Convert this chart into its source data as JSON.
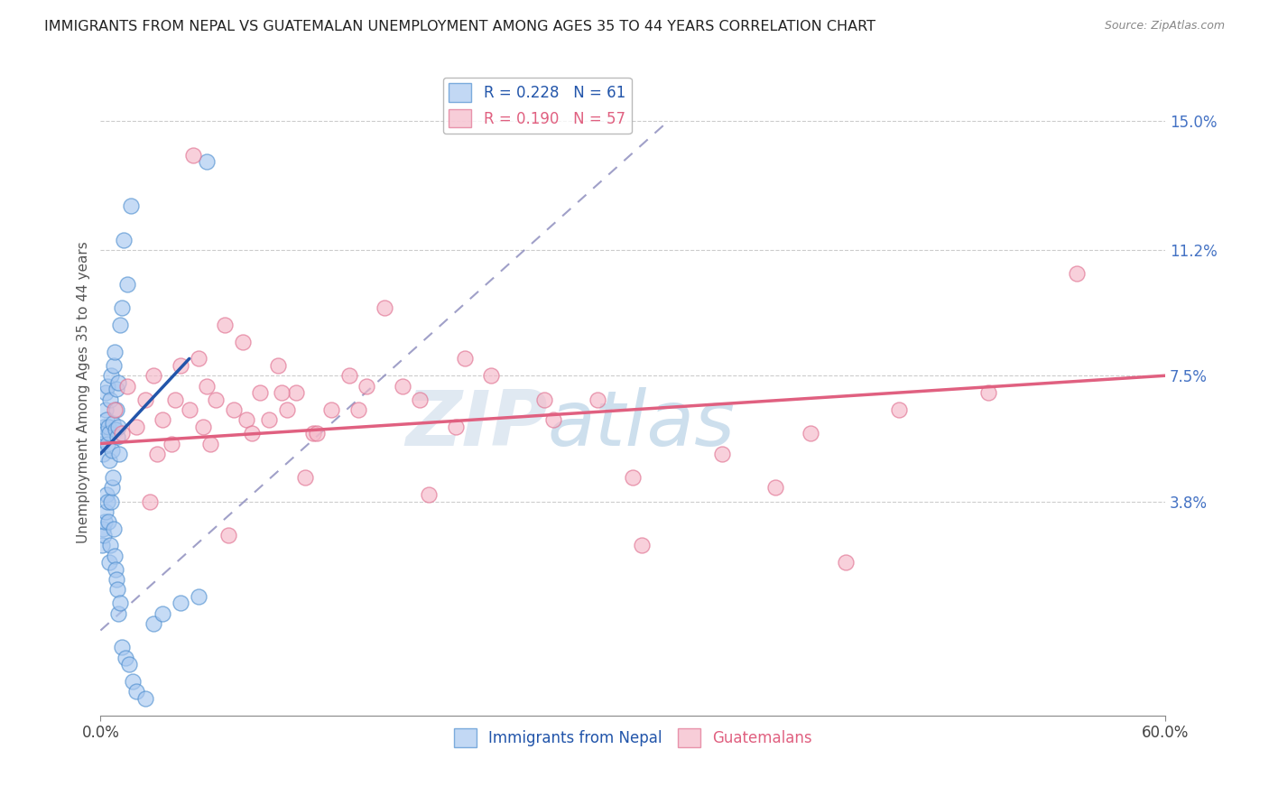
{
  "title": "IMMIGRANTS FROM NEPAL VS GUATEMALAN UNEMPLOYMENT AMONG AGES 35 TO 44 YEARS CORRELATION CHART",
  "source": "Source: ZipAtlas.com",
  "ylabel": "Unemployment Among Ages 35 to 44 years",
  "xlim": [
    0.0,
    60.0
  ],
  "ylim": [
    -2.5,
    16.5
  ],
  "yticks": [
    3.8,
    7.5,
    11.2,
    15.0
  ],
  "xtick_positions": [
    0.0,
    60.0
  ],
  "xtick_labels": [
    "0.0%",
    "60.0%"
  ],
  "ytick_labels": [
    "3.8%",
    "7.5%",
    "11.2%",
    "15.0%"
  ],
  "series1_label": "Immigrants from Nepal",
  "series2_label": "Guatemalans",
  "series1_color": "#a8c8f0",
  "series2_color": "#f5b8c8",
  "series1_edge": "#5090d0",
  "series2_edge": "#e07090",
  "line1_color": "#2255aa",
  "line2_color": "#e06080",
  "ref_line_color": "#8888bb",
  "background_color": "#ffffff",
  "watermark": "ZIPatlas",
  "watermark_color_zip": "#c0cfe0",
  "watermark_color_atlas": "#90b8d8",
  "legend1_label": "R = 0.228   N = 61",
  "legend2_label": "R = 0.190   N = 57",
  "nepal_x": [
    0.1,
    0.15,
    0.2,
    0.25,
    0.3,
    0.3,
    0.35,
    0.4,
    0.4,
    0.45,
    0.5,
    0.5,
    0.55,
    0.6,
    0.65,
    0.7,
    0.75,
    0.8,
    0.85,
    0.9,
    0.9,
    0.95,
    1.0,
    1.0,
    1.05,
    1.1,
    1.2,
    1.3,
    1.5,
    1.7,
    0.1,
    0.15,
    0.2,
    0.25,
    0.3,
    0.35,
    0.4,
    0.45,
    0.5,
    0.55,
    0.6,
    0.65,
    0.7,
    0.75,
    0.8,
    0.85,
    0.9,
    0.95,
    1.0,
    1.1,
    1.2,
    1.4,
    1.6,
    1.8,
    2.0,
    2.5,
    3.0,
    3.5,
    4.5,
    5.5,
    6.0
  ],
  "nepal_y": [
    5.5,
    5.2,
    6.0,
    5.8,
    6.5,
    7.0,
    6.2,
    5.5,
    7.2,
    6.0,
    5.0,
    5.8,
    6.8,
    7.5,
    5.3,
    6.1,
    7.8,
    8.2,
    5.9,
    6.5,
    7.1,
    5.7,
    6.0,
    7.3,
    5.2,
    9.0,
    9.5,
    11.5,
    10.2,
    12.5,
    2.5,
    3.0,
    2.8,
    3.2,
    3.5,
    4.0,
    3.8,
    3.2,
    2.0,
    2.5,
    3.8,
    4.2,
    4.5,
    3.0,
    2.2,
    1.8,
    1.5,
    1.2,
    0.5,
    0.8,
    -0.5,
    -0.8,
    -1.0,
    -1.5,
    -1.8,
    -2.0,
    0.2,
    0.5,
    0.8,
    1.0,
    13.8
  ],
  "guatemala_x": [
    0.8,
    1.2,
    1.5,
    2.0,
    2.5,
    3.0,
    3.5,
    4.0,
    4.5,
    5.0,
    5.5,
    6.0,
    6.5,
    7.0,
    7.5,
    8.0,
    9.0,
    9.5,
    10.0,
    10.5,
    11.0,
    12.0,
    13.0,
    14.0,
    15.0,
    16.0,
    18.0,
    20.0,
    22.0,
    25.0,
    3.2,
    4.2,
    6.2,
    8.2,
    10.2,
    12.2,
    14.5,
    17.0,
    20.5,
    25.5,
    30.0,
    35.0,
    40.0,
    45.0,
    50.0,
    55.0,
    28.0,
    38.0,
    8.5,
    5.8,
    2.8,
    7.2,
    11.5,
    18.5,
    30.5,
    42.0,
    5.2
  ],
  "guatemala_y": [
    6.5,
    5.8,
    7.2,
    6.0,
    6.8,
    7.5,
    6.2,
    5.5,
    7.8,
    6.5,
    8.0,
    7.2,
    6.8,
    9.0,
    6.5,
    8.5,
    7.0,
    6.2,
    7.8,
    6.5,
    7.0,
    5.8,
    6.5,
    7.5,
    7.2,
    9.5,
    6.8,
    6.0,
    7.5,
    6.8,
    5.2,
    6.8,
    5.5,
    6.2,
    7.0,
    5.8,
    6.5,
    7.2,
    8.0,
    6.2,
    4.5,
    5.2,
    5.8,
    6.5,
    7.0,
    10.5,
    6.8,
    4.2,
    5.8,
    6.0,
    3.8,
    2.8,
    4.5,
    4.0,
    2.5,
    2.0,
    14.0
  ],
  "nepal_line_x": [
    0.0,
    5.0
  ],
  "nepal_line_y": [
    5.2,
    8.0
  ],
  "guatemala_line_x": [
    0.0,
    60.0
  ],
  "guatemala_line_y": [
    5.5,
    7.5
  ],
  "ref_line_x": [
    0.0,
    32.0
  ],
  "ref_line_y": [
    0.0,
    15.0
  ]
}
